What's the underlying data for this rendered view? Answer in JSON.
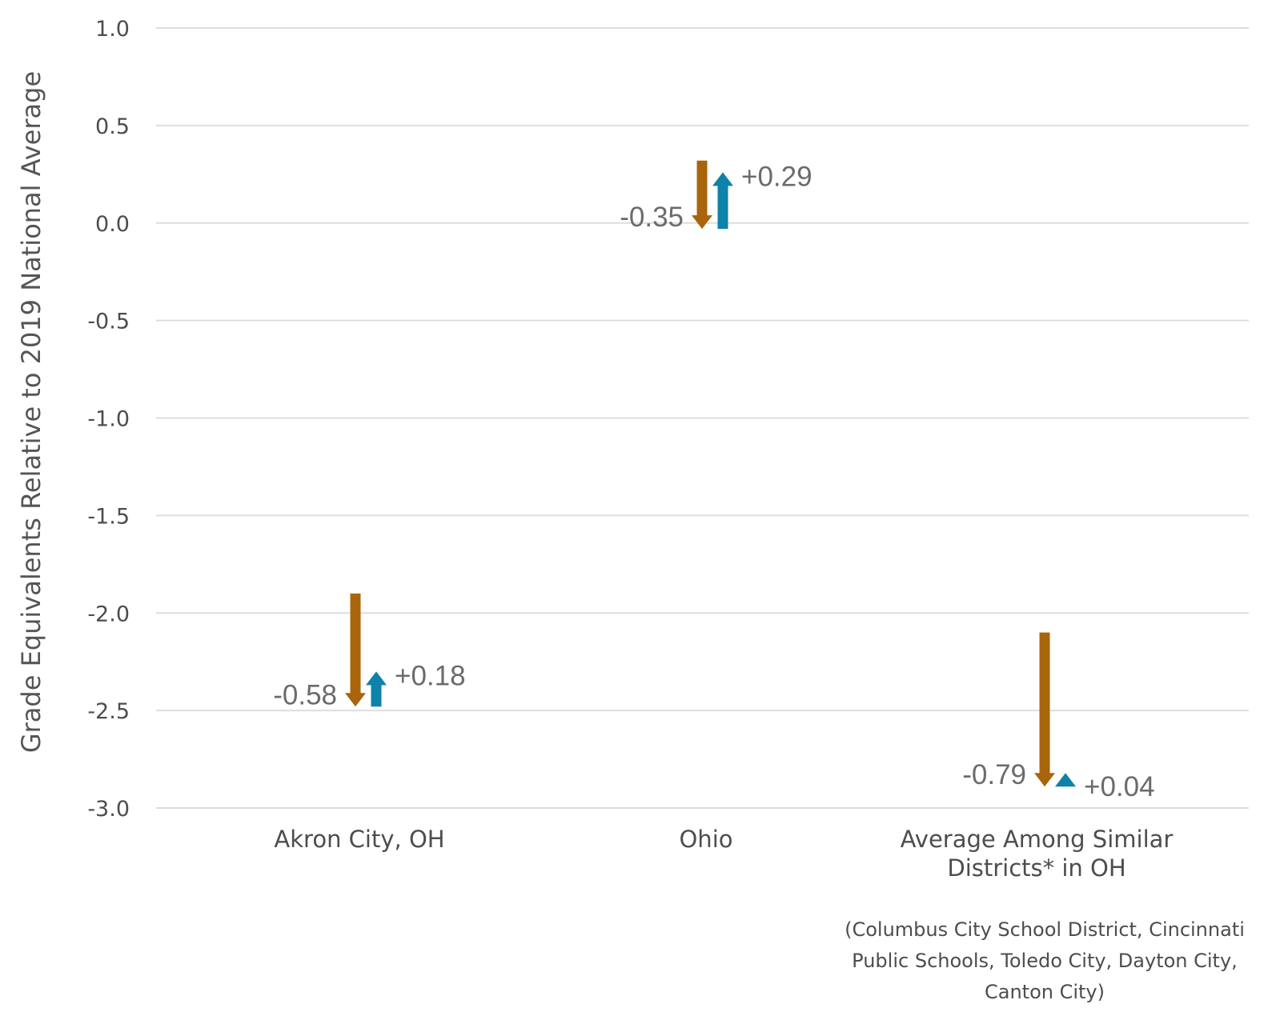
{
  "chart_data": {
    "type": "bar",
    "ylabel": "Grade Equivalents Relative to 2019 National Average",
    "ylim": [
      -3.0,
      1.0
    ],
    "yticks": [
      "1.0",
      "0.5",
      "0.0",
      "-0.5",
      "-1.0",
      "-1.5",
      "-2.0",
      "-2.5",
      "-3.0"
    ],
    "grid": true,
    "categories": [
      {
        "label_lines": [
          "Akron City, OH"
        ]
      },
      {
        "label_lines": [
          "Ohio"
        ]
      },
      {
        "label_lines": [
          "Average Among Similar",
          "Districts* in OH"
        ]
      }
    ],
    "series": [
      {
        "color": "#a8650b",
        "direction": "down",
        "start": [
          -1.9,
          0.32,
          -2.1
        ],
        "end": [
          -2.48,
          -0.03,
          -2.89
        ],
        "labels": [
          "-0.58",
          "-0.35",
          "-0.79"
        ]
      },
      {
        "color": "#0e82a8",
        "direction": "up",
        "start": [
          -2.48,
          -0.03,
          -2.89
        ],
        "end": [
          -2.3,
          0.26,
          -2.85
        ],
        "labels": [
          "+0.18",
          "+0.29",
          "+0.04"
        ]
      }
    ],
    "footnote_lines": [
      "(Columbus City School District, Cincinnati",
      "Public Schools, Toledo City, Dayton City,",
      "Canton City)"
    ]
  }
}
